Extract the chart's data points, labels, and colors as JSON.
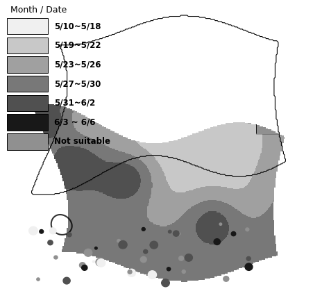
{
  "title": "Month / Date",
  "legend_labels": [
    "5/10~5/18",
    "5/19~5/22",
    "5/23~5/26",
    "5/27~5/30",
    "5/31~6/2",
    "6/3 ~ 6/6",
    "Not suitable"
  ],
  "legend_colors": [
    "#f0f0f0",
    "#c8c8c8",
    "#a0a0a0",
    "#787878",
    "#505050",
    "#181818",
    "#909090"
  ],
  "figsize": [
    4.51,
    4.29
  ],
  "dpi": 100
}
